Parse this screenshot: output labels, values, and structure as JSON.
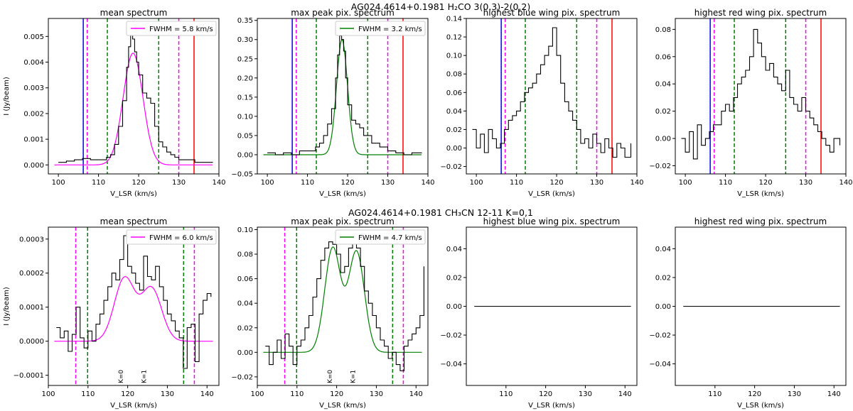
{
  "figure": {
    "row_titles": [
      "AG024.4614+0.1981  H₂CO 3(0,3)-2(0,2)",
      "AG024.4614+0.1981 CH₃CN 12-11 K=0,1"
    ]
  },
  "chart_data": [
    {
      "type": "line",
      "title": "mean spectrum",
      "xlabel": "V_LSR (km/s)",
      "ylabel": "I (Jy/beam)",
      "xlim": [
        97.5,
        140
      ],
      "ylim": [
        -0.00035,
        0.0057
      ],
      "xticks": [
        100,
        110,
        120,
        130,
        140
      ],
      "xtick_labels": [
        "100",
        "110",
        "120",
        "130",
        "140"
      ],
      "yticks": [
        0,
        0.001,
        0.002,
        0.003,
        0.004,
        0.005
      ],
      "ytick_labels": [
        "0.000",
        "0.001",
        "0.002",
        "0.003",
        "0.004",
        "0.005"
      ],
      "legend": "FWHM = 5.8 km/s",
      "legend_color": "#ff00ff",
      "fit": {
        "type": "gaussian",
        "amp": 0.00435,
        "center": 118.6,
        "fwhm": 5.8,
        "baseline": 0,
        "color": "#ff00ff"
      },
      "vlines": [
        {
          "x": 106.2,
          "color": "#0000ff",
          "style": "solid"
        },
        {
          "x": 107.2,
          "color": "#ff00ff",
          "style": "dashed"
        },
        {
          "x": 112.2,
          "color": "#008000",
          "style": "dashed"
        },
        {
          "x": 125.0,
          "color": "#008000",
          "style": "dashed"
        },
        {
          "x": 130.0,
          "color": "#ff00ff",
          "style": "dashed"
        },
        {
          "x": 133.8,
          "color": "#ff0000",
          "style": "solid"
        }
      ],
      "series": [
        {
          "x": [
            100,
            102,
            104,
            106,
            108,
            110,
            112,
            113,
            114,
            115,
            116,
            117,
            117.5,
            118,
            118.5,
            119,
            119.5,
            120,
            121,
            122,
            123,
            124,
            125,
            126,
            127,
            128,
            129,
            130,
            132,
            134,
            136,
            138.5
          ],
          "values": [
            0.0001,
            0.00015,
            0.0002,
            0.00025,
            0.0002,
            0.0002,
            0.0003,
            0.0004,
            0.0008,
            0.0015,
            0.0025,
            0.0038,
            0.0046,
            0.0051,
            0.0049,
            0.0044,
            0.004,
            0.0035,
            0.0028,
            0.0026,
            0.0024,
            0.0015,
            0.0009,
            0.0007,
            0.0005,
            0.0004,
            0.0003,
            0.0002,
            0.0002,
            0.0001,
            0.0001,
            0.0001
          ],
          "color": "#000000"
        }
      ]
    },
    {
      "type": "line",
      "title": "max peak pix. spectrum",
      "xlabel": "V_LSR (km/s)",
      "ylabel": "",
      "xlim": [
        97.5,
        140
      ],
      "ylim": [
        -0.05,
        0.355
      ],
      "xticks": [
        100,
        110,
        120,
        130,
        140
      ],
      "xtick_labels": [
        "100",
        "110",
        "120",
        "130",
        "140"
      ],
      "yticks": [
        -0.05,
        0,
        0.05,
        0.1,
        0.15,
        0.2,
        0.25,
        0.3,
        0.35
      ],
      "ytick_labels": [
        "−0.05",
        "0.00",
        "0.05",
        "0.10",
        "0.15",
        "0.20",
        "0.25",
        "0.30",
        "0.35"
      ],
      "legend": "FWHM = 3.2 km/s",
      "legend_color": "#008000",
      "fit": {
        "type": "gaussian",
        "amp": 0.3,
        "center": 118.6,
        "fwhm": 3.2,
        "baseline": 0,
        "color": "#008000"
      },
      "vlines": [
        {
          "x": 106.2,
          "color": "#0000ff",
          "style": "solid"
        },
        {
          "x": 107.2,
          "color": "#ff00ff",
          "style": "dashed"
        },
        {
          "x": 112.2,
          "color": "#008000",
          "style": "dashed"
        },
        {
          "x": 125.0,
          "color": "#008000",
          "style": "dashed"
        },
        {
          "x": 130.0,
          "color": "#ff00ff",
          "style": "dashed"
        },
        {
          "x": 133.8,
          "color": "#ff0000",
          "style": "solid"
        }
      ],
      "series": [
        {
          "x": [
            100,
            102,
            104,
            106,
            108,
            110,
            112,
            113,
            114,
            115,
            116,
            117,
            117.5,
            118,
            118.5,
            119,
            119.5,
            120,
            121,
            122,
            123,
            124,
            126,
            128,
            130,
            132,
            134,
            136,
            138.5
          ],
          "values": [
            0.005,
            0.0,
            0.005,
            0.0,
            0.01,
            0.01,
            0.02,
            0.03,
            0.05,
            0.08,
            0.12,
            0.2,
            0.26,
            0.31,
            0.3,
            0.27,
            0.2,
            0.13,
            0.09,
            0.08,
            0.07,
            0.05,
            0.03,
            0.02,
            0.01,
            0.005,
            0.0,
            0.005,
            0.005
          ],
          "color": "#000000"
        }
      ]
    },
    {
      "type": "line",
      "title": "highest blue wing pix. spectrum",
      "xlabel": "V_LSR (km/s)",
      "ylabel": "",
      "xlim": [
        97.5,
        140
      ],
      "ylim": [
        -0.028,
        0.14
      ],
      "xticks": [
        100,
        110,
        120,
        130,
        140
      ],
      "xtick_labels": [
        "100",
        "110",
        "120",
        "130",
        "140"
      ],
      "yticks": [
        -0.02,
        0,
        0.02,
        0.04,
        0.06,
        0.08,
        0.1,
        0.12,
        0.14
      ],
      "ytick_labels": [
        "−0.02",
        "0.00",
        "0.02",
        "0.04",
        "0.06",
        "0.08",
        "0.10",
        "0.12",
        "0.14"
      ],
      "vlines": [
        {
          "x": 106.2,
          "color": "#0000ff",
          "style": "solid"
        },
        {
          "x": 107.2,
          "color": "#ff00ff",
          "style": "dashed"
        },
        {
          "x": 112.2,
          "color": "#008000",
          "style": "dashed"
        },
        {
          "x": 125.0,
          "color": "#008000",
          "style": "dashed"
        },
        {
          "x": 130.0,
          "color": "#ff00ff",
          "style": "dashed"
        },
        {
          "x": 133.8,
          "color": "#ff0000",
          "style": "solid"
        }
      ],
      "series": [
        {
          "x": [
            99,
            100,
            101,
            102,
            103,
            104,
            105,
            106,
            107,
            108,
            109,
            110,
            111,
            112,
            113,
            114,
            115,
            116,
            117,
            118,
            119,
            120,
            121,
            122,
            123,
            124,
            125,
            126,
            127,
            128,
            129,
            130,
            131,
            132,
            133,
            134,
            135,
            136,
            137,
            138.5
          ],
          "values": [
            0.02,
            0.0,
            0.015,
            -0.005,
            0.02,
            0.01,
            0.0,
            0.005,
            0.02,
            0.03,
            0.035,
            0.04,
            0.05,
            0.06,
            0.065,
            0.07,
            0.08,
            0.09,
            0.1,
            0.11,
            0.13,
            0.1,
            0.07,
            0.05,
            0.04,
            0.03,
            0.02,
            0.005,
            0.01,
            0.0,
            0.015,
            0.005,
            -0.005,
            0.01,
            0.0,
            -0.01,
            0.005,
            0.0,
            -0.01,
            0.005
          ],
          "color": "#000000"
        }
      ]
    },
    {
      "type": "line",
      "title": "highest red wing pix. spectrum",
      "xlabel": "V_LSR (km/s)",
      "ylabel": "",
      "xlim": [
        97.5,
        140
      ],
      "ylim": [
        -0.026,
        0.088
      ],
      "xticks": [
        100,
        110,
        120,
        130,
        140
      ],
      "xtick_labels": [
        "100",
        "110",
        "120",
        "130",
        "140"
      ],
      "yticks": [
        -0.02,
        0,
        0.02,
        0.04,
        0.06,
        0.08
      ],
      "ytick_labels": [
        "−0.02",
        "0.00",
        "0.02",
        "0.04",
        "0.06",
        "0.08"
      ],
      "vlines": [
        {
          "x": 106.2,
          "color": "#0000ff",
          "style": "solid"
        },
        {
          "x": 107.2,
          "color": "#ff00ff",
          "style": "dashed"
        },
        {
          "x": 112.2,
          "color": "#008000",
          "style": "dashed"
        },
        {
          "x": 125.0,
          "color": "#008000",
          "style": "dashed"
        },
        {
          "x": 130.0,
          "color": "#ff00ff",
          "style": "dashed"
        },
        {
          "x": 133.8,
          "color": "#ff0000",
          "style": "solid"
        }
      ],
      "series": [
        {
          "x": [
            99,
            100,
            101,
            102,
            103,
            104,
            105,
            106,
            107,
            108,
            109,
            110,
            111,
            112,
            113,
            114,
            115,
            116,
            117,
            118,
            119,
            120,
            121,
            122,
            123,
            124,
            125,
            126,
            127,
            128,
            129,
            130,
            131,
            132,
            133,
            134,
            135,
            136,
            137,
            138.5
          ],
          "values": [
            0.0,
            -0.01,
            0.005,
            -0.015,
            0.01,
            -0.005,
            0.0,
            0.005,
            0.01,
            0.01,
            0.02,
            0.025,
            0.02,
            0.03,
            0.04,
            0.045,
            0.05,
            0.06,
            0.08,
            0.07,
            0.06,
            0.05,
            0.055,
            0.045,
            0.04,
            0.035,
            0.05,
            0.03,
            0.025,
            0.02,
            0.03,
            0.02,
            0.015,
            0.01,
            0.005,
            0.0,
            -0.005,
            -0.01,
            0.0,
            -0.005
          ],
          "color": "#000000"
        }
      ]
    },
    {
      "type": "line",
      "title": "mean spectrum",
      "xlabel": "V_LSR (km/s)",
      "ylabel": "I (Jy/beam)",
      "xlim": [
        100,
        143
      ],
      "ylim": [
        -0.00013,
        0.000335
      ],
      "xticks": [
        100,
        110,
        120,
        130,
        140
      ],
      "xtick_labels": [
        "100",
        "110",
        "120",
        "130",
        "140"
      ],
      "yticks": [
        -0.0001,
        0,
        0.0001,
        0.0002,
        0.0003
      ],
      "ytick_labels": [
        "−0.0001",
        "0.0000",
        "0.0001",
        "0.0002",
        "0.0003"
      ],
      "legend": "FWHM = 6.0 km/s",
      "legend_color": "#ff00ff",
      "fit": {
        "type": "double_gaussian",
        "components": [
          {
            "amp": 0.000185,
            "center": 119.2,
            "fwhm": 6.0
          },
          {
            "amp": 0.000155,
            "center": 126.0,
            "fwhm": 6.0
          }
        ],
        "baseline": 0,
        "color": "#ff00ff"
      },
      "vlines": [
        {
          "x": 106.9,
          "color": "#ff00ff",
          "style": "dashed"
        },
        {
          "x": 109.9,
          "color": "#008000",
          "style": "dashed"
        },
        {
          "x": 134.1,
          "color": "#008000",
          "style": "dashed"
        },
        {
          "x": 136.8,
          "color": "#ff00ff",
          "style": "dashed"
        }
      ],
      "annotations": [
        {
          "x": 118.8,
          "text": "K=0"
        },
        {
          "x": 124.6,
          "text": "K=1"
        }
      ],
      "series": [
        {
          "x": [
            102,
            103,
            104,
            105,
            106,
            107,
            108,
            109,
            110,
            111,
            112,
            113,
            114,
            115,
            116,
            117,
            118,
            119,
            120,
            121,
            122,
            123,
            124,
            125,
            126,
            127,
            128,
            129,
            130,
            131,
            132,
            133,
            134,
            135,
            136,
            137,
            138,
            139,
            140,
            141
          ],
          "values": [
            4e-05,
            1e-05,
            3e-05,
            -3e-05,
            2e-05,
            0.0001,
            1e-05,
            -2e-05,
            3e-05,
            0.0,
            5e-05,
            8e-05,
            0.00012,
            0.00016,
            0.0002,
            0.00018,
            0.00024,
            0.00031,
            0.00022,
            0.0002,
            0.00017,
            0.00015,
            0.00025,
            0.00019,
            0.00018,
            0.00022,
            0.00016,
            0.00012,
            8e-05,
            6e-05,
            3e-05,
            1e-05,
            -8e-05,
            4e-05,
            5e-05,
            -6e-05,
            8e-05,
            0.00012,
            0.00014,
            0.00013
          ],
          "color": "#000000"
        }
      ]
    },
    {
      "type": "line",
      "title": "max peak pix. spectrum",
      "xlabel": "V_LSR (km/s)",
      "ylabel": "",
      "xlim": [
        100,
        143
      ],
      "ylim": [
        -0.027,
        0.102
      ],
      "xticks": [
        100,
        110,
        120,
        130,
        140
      ],
      "xtick_labels": [
        "100",
        "110",
        "120",
        "130",
        "140"
      ],
      "yticks": [
        -0.02,
        0,
        0.02,
        0.04,
        0.06,
        0.08,
        0.1
      ],
      "ytick_labels": [
        "−0.02",
        "0.00",
        "0.02",
        "0.04",
        "0.06",
        "0.08",
        "0.10"
      ],
      "legend": "FWHM = 4.7 km/s",
      "legend_color": "#008000",
      "fit": {
        "type": "double_gaussian",
        "components": [
          {
            "amp": 0.085,
            "center": 119.0,
            "fwhm": 4.7
          },
          {
            "amp": 0.082,
            "center": 125.0,
            "fwhm": 4.7
          }
        ],
        "baseline": 0,
        "color": "#008000"
      },
      "vlines": [
        {
          "x": 106.9,
          "color": "#ff00ff",
          "style": "dashed"
        },
        {
          "x": 109.9,
          "color": "#008000",
          "style": "dashed"
        },
        {
          "x": 134.1,
          "color": "#008000",
          "style": "dashed"
        },
        {
          "x": 136.8,
          "color": "#ff00ff",
          "style": "dashed"
        }
      ],
      "annotations": [
        {
          "x": 118.8,
          "text": "K=0"
        },
        {
          "x": 124.6,
          "text": "K=1"
        }
      ],
      "series": [
        {
          "x": [
            102,
            103,
            104,
            105,
            106,
            107,
            108,
            109,
            110,
            111,
            112,
            113,
            114,
            115,
            116,
            117,
            118,
            119,
            120,
            121,
            122,
            123,
            124,
            125,
            126,
            127,
            128,
            129,
            130,
            131,
            132,
            133,
            134,
            135,
            136,
            137,
            138,
            139,
            140,
            141,
            142
          ],
          "values": [
            0.005,
            -0.01,
            0.0,
            0.01,
            -0.005,
            0.015,
            0.005,
            -0.01,
            0.005,
            0.01,
            0.02,
            0.03,
            0.045,
            0.06,
            0.075,
            0.085,
            0.09,
            0.088,
            0.08,
            0.065,
            0.07,
            0.085,
            0.09,
            0.085,
            0.07,
            0.05,
            0.04,
            0.03,
            0.02,
            0.01,
            0.005,
            -0.005,
            0.0,
            -0.01,
            -0.015,
            0.005,
            0.01,
            0.015,
            0.02,
            0.03,
            0.07
          ],
          "color": "#000000"
        }
      ]
    },
    {
      "type": "line",
      "title": "highest blue wing pix. spectrum",
      "xlabel": "V_LSR (km/s)",
      "ylabel": "",
      "xlim": [
        100,
        143
      ],
      "ylim": [
        -0.055,
        0.055
      ],
      "xticks": [
        110,
        120,
        130,
        140
      ],
      "xtick_labels": [
        "110",
        "120",
        "130",
        "140"
      ],
      "yticks": [
        -0.04,
        -0.02,
        0,
        0.02,
        0.04
      ],
      "ytick_labels": [
        "−0.04",
        "−0.02",
        "0.00",
        "0.02",
        "0.04"
      ],
      "vlines": [],
      "series": [
        {
          "x": [
            102,
            141.5
          ],
          "values": [
            0,
            0
          ],
          "color": "#000000"
        }
      ]
    },
    {
      "type": "line",
      "title": "highest red wing pix. spectrum",
      "xlabel": "V_LSR (km/s)",
      "ylabel": "",
      "xlim": [
        100,
        143
      ],
      "ylim": [
        -0.055,
        0.055
      ],
      "xticks": [
        110,
        120,
        130,
        140
      ],
      "xtick_labels": [
        "110",
        "120",
        "130",
        "140"
      ],
      "yticks": [
        -0.04,
        -0.02,
        0,
        0.02,
        0.04
      ],
      "ytick_labels": [
        "−0.04",
        "−0.02",
        "0.00",
        "0.02",
        "0.04"
      ],
      "vlines": [],
      "series": [
        {
          "x": [
            102,
            141.5
          ],
          "values": [
            0,
            0
          ],
          "color": "#000000"
        }
      ]
    }
  ]
}
